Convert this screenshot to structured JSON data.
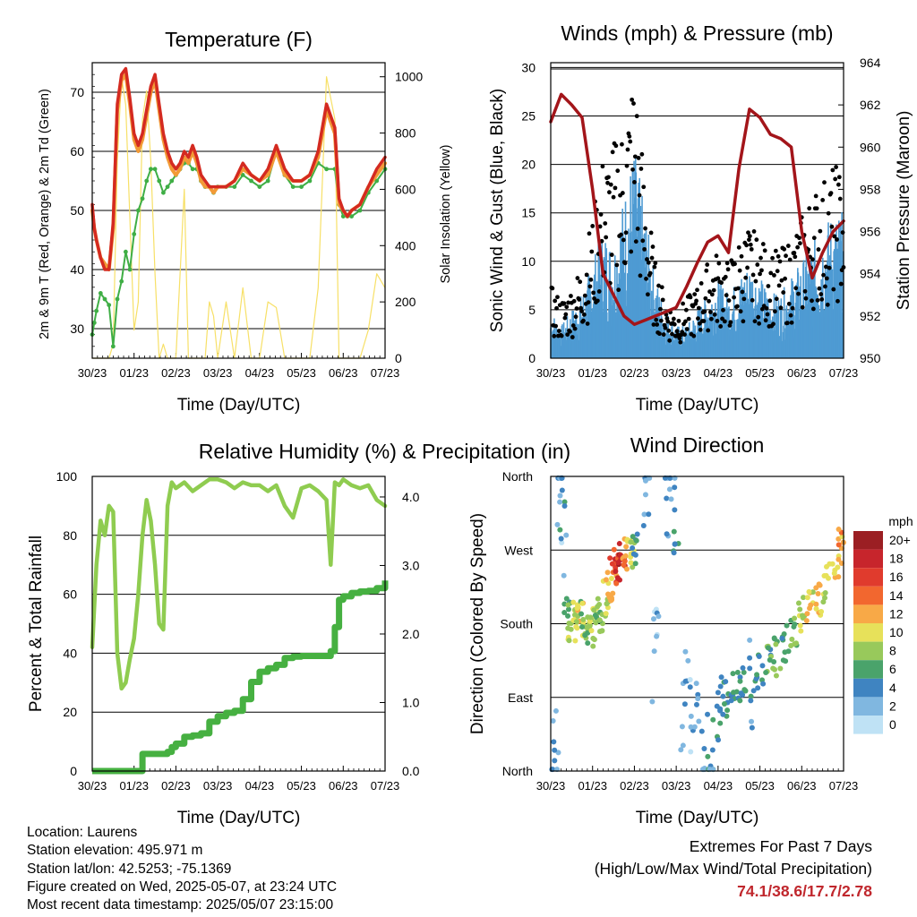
{
  "x_ticks": [
    "30/23",
    "01/23",
    "02/23",
    "03/23",
    "04/23",
    "05/23",
    "06/23",
    "07/23"
  ],
  "footer": {
    "location": "Location: Laurens",
    "elevation": "Station elevation: 495.971 m",
    "latlon": "Station lat/lon: 42.5253; -75.1369",
    "created": "Figure created on Wed, 2025-05-07, at 23:24 UTC",
    "recent": "Most recent data timestamp: 2025/05/07 23:15:00",
    "extremes_title": "Extremes For Past 7 Days",
    "extremes_sub": "(High/Low/Max Wind/Total Precipitation)",
    "extremes_values": "74.1/38.6/17.7/2.78"
  },
  "colors": {
    "temp": "#d42a20",
    "temp9m": "#f29a36",
    "dewpoint": "#3fae45",
    "solar": "#f7e067",
    "wind": "#4e9bd3",
    "gust": "#000000",
    "pressure": "#a3151a",
    "rh": "#8fcc50",
    "rain": "#46b041",
    "extremes": "#c0272d"
  },
  "chart_data": [
    {
      "type": "line",
      "title": "Temperature (F)",
      "xlabel": "Time (Day/UTC)",
      "ylabel": "2m & 9m T (Red, Orange) & 2m Td (Green)",
      "y2label": "Solar Insolation (Yellow)",
      "ylim": [
        25,
        75
      ],
      "y2lim": [
        0,
        1050
      ],
      "yticks": [
        30,
        40,
        50,
        60,
        70
      ],
      "y2ticks": [
        0,
        200,
        400,
        600,
        800,
        1000
      ],
      "x": [
        0,
        0.05,
        0.1,
        0.2,
        0.3,
        0.4,
        0.5,
        0.6,
        0.7,
        0.8,
        0.9,
        1.0,
        1.1,
        1.2,
        1.3,
        1.4,
        1.5,
        1.6,
        1.7,
        1.8,
        1.9,
        2.0,
        2.1,
        2.2,
        2.3,
        2.4,
        2.5,
        2.6,
        2.7,
        2.8,
        2.9,
        3.0,
        3.2,
        3.4,
        3.6,
        3.8,
        4.0,
        4.2,
        4.4,
        4.6,
        4.8,
        5.0,
        5.2,
        5.4,
        5.6,
        5.8,
        5.9,
        6.0,
        6.1,
        6.2,
        6.4,
        6.6,
        6.8,
        7.0
      ],
      "series": [
        {
          "name": "2m T",
          "values": [
            51,
            47,
            45,
            42,
            40,
            40,
            48,
            68,
            73,
            74,
            69,
            63,
            61,
            63,
            67,
            71,
            73,
            68,
            63,
            60,
            58,
            57,
            58,
            60,
            59,
            61,
            59,
            56,
            55,
            54,
            54,
            54,
            54,
            55,
            58,
            56,
            55,
            57,
            61,
            57,
            55,
            55,
            56,
            60,
            68,
            64,
            52,
            50,
            49,
            50,
            51,
            54,
            57,
            59
          ]
        },
        {
          "name": "9m T",
          "values": [
            50,
            47,
            45,
            42,
            41,
            40,
            47,
            67,
            72,
            73,
            68,
            62,
            60,
            62,
            66,
            70,
            72,
            67,
            62,
            59,
            57,
            56,
            57,
            59,
            58,
            60,
            58,
            55,
            54,
            54,
            53,
            54,
            54,
            55,
            57,
            56,
            55,
            56,
            60,
            56,
            55,
            55,
            56,
            59,
            67,
            63,
            51,
            50,
            49,
            50,
            51,
            54,
            56,
            58
          ]
        },
        {
          "name": "2m Td",
          "values": [
            29,
            31,
            33,
            36,
            35,
            34,
            27,
            35,
            38,
            43,
            40,
            46,
            50,
            52,
            55,
            57,
            57,
            55,
            53,
            54,
            55,
            56,
            57,
            58,
            58,
            57,
            57,
            55,
            54,
            54,
            53,
            54,
            54,
            54,
            56,
            55,
            54,
            55,
            60,
            56,
            54,
            54,
            55,
            58,
            57,
            57,
            51,
            49,
            49,
            49,
            50,
            53,
            55,
            57
          ]
        },
        {
          "name": "Solar",
          "values": [
            0,
            0,
            0,
            0,
            0,
            0,
            50,
            700,
            1000,
            900,
            500,
            100,
            200,
            850,
            950,
            700,
            300,
            0,
            50,
            0,
            0,
            0,
            300,
            600,
            0,
            0,
            0,
            0,
            0,
            200,
            150,
            0,
            200,
            0,
            250,
            0,
            0,
            200,
            180,
            0,
            0,
            0,
            0,
            250,
            1000,
            850,
            0,
            0,
            0,
            0,
            0,
            100,
            300,
            250
          ]
        }
      ]
    },
    {
      "type": "line",
      "title": "Winds (mph) & Pressure (mb)",
      "xlabel": "Time (Day/UTC)",
      "ylabel": "Sonic Wind & Gust (Blue, Black)",
      "y2label": "Station Pressure (Maroon)",
      "ylim": [
        0,
        30.5
      ],
      "y2lim": [
        950,
        964
      ],
      "yticks": [
        0,
        5,
        10,
        15,
        20,
        25,
        30
      ],
      "y2ticks": [
        950,
        952,
        954,
        956,
        958,
        960,
        962,
        964
      ],
      "x": [
        0,
        0.25,
        0.5,
        0.75,
        1.0,
        1.25,
        1.5,
        1.75,
        2.0,
        2.25,
        2.5,
        2.75,
        3.0,
        3.25,
        3.5,
        3.75,
        4.0,
        4.25,
        4.5,
        4.75,
        5.0,
        5.25,
        5.5,
        5.75,
        6.0,
        6.25,
        6.5,
        6.75,
        7.0
      ],
      "series": [
        {
          "name": "Sonic Wind",
          "values": [
            3,
            2,
            3,
            4,
            6,
            8,
            7,
            10,
            13,
            9,
            5,
            3,
            2,
            2,
            3,
            4,
            5,
            4,
            5,
            6,
            5,
            4,
            4,
            5,
            6,
            7,
            8,
            9,
            9
          ]
        },
        {
          "name": "Gust",
          "values": [
            6,
            5,
            6,
            8,
            12,
            17,
            18,
            20,
            25,
            15,
            8,
            5,
            4,
            5,
            6,
            8,
            9,
            8,
            10,
            11,
            10,
            9,
            9,
            10,
            12,
            14,
            15,
            16,
            16
          ]
        },
        {
          "name": "Station Pressure",
          "values": [
            961.2,
            962.5,
            962.0,
            961.4,
            958.0,
            954.0,
            953.0,
            952.0,
            951.6,
            951.8,
            952.0,
            952.2,
            952.4,
            953.4,
            954.5,
            955.5,
            955.8,
            955.0,
            959.0,
            961.8,
            961.4,
            960.6,
            960.4,
            960.0,
            956.0,
            953.8,
            955.0,
            956.0,
            956.5
          ]
        }
      ]
    },
    {
      "type": "line",
      "title": "Relative Humidity (%) & Precipitation (in)",
      "xlabel": "Time (Day/UTC)",
      "ylabel": "Percent & Total Rainfall",
      "ylim": [
        0,
        100
      ],
      "y2lim": [
        0.0,
        4.3
      ],
      "yticks": [
        0,
        20,
        40,
        60,
        80,
        100
      ],
      "y2ticks": [
        "0.0",
        "1.0",
        "2.0",
        "3.0",
        "4.0"
      ],
      "x": [
        0,
        0.1,
        0.2,
        0.3,
        0.4,
        0.5,
        0.6,
        0.7,
        0.8,
        0.9,
        1.0,
        1.1,
        1.2,
        1.3,
        1.4,
        1.5,
        1.6,
        1.7,
        1.8,
        1.9,
        2.0,
        2.2,
        2.4,
        2.6,
        2.8,
        3.0,
        3.2,
        3.4,
        3.6,
        3.8,
        4.0,
        4.2,
        4.4,
        4.6,
        4.8,
        5.0,
        5.2,
        5.4,
        5.6,
        5.7,
        5.8,
        5.9,
        6.0,
        6.2,
        6.4,
        6.6,
        6.8,
        7.0
      ],
      "series": [
        {
          "name": "Relative Humidity",
          "values": [
            42,
            70,
            85,
            80,
            90,
            88,
            40,
            28,
            30,
            38,
            45,
            60,
            80,
            92,
            85,
            70,
            50,
            48,
            90,
            98,
            96,
            98,
            95,
            97,
            99,
            99,
            98,
            96,
            98,
            97,
            97,
            95,
            97,
            90,
            86,
            96,
            97,
            95,
            92,
            70,
            98,
            97,
            99,
            97,
            96,
            97,
            92,
            90
          ]
        },
        {
          "name": "Total Rainfall",
          "values": [
            0.0,
            0.0,
            0.0,
            0.0,
            0.0,
            0.0,
            0.0,
            0.0,
            0.0,
            0.0,
            0.0,
            0.0,
            0.25,
            0.25,
            0.25,
            0.25,
            0.25,
            0.25,
            0.28,
            0.35,
            0.4,
            0.5,
            0.52,
            0.55,
            0.72,
            0.8,
            0.85,
            0.88,
            1.05,
            1.3,
            1.45,
            1.5,
            1.55,
            1.65,
            1.67,
            1.68,
            1.68,
            1.68,
            1.68,
            1.75,
            2.1,
            2.5,
            2.55,
            2.6,
            2.62,
            2.63,
            2.67,
            2.78
          ]
        }
      ]
    },
    {
      "type": "scatter",
      "title": "Wind Direction",
      "xlabel": "Time (Day/UTC)",
      "ylabel": "Direction (Colored By Speed)",
      "yticks": [
        "North",
        "East",
        "South",
        "West",
        "North"
      ],
      "ylim_degrees": [
        0,
        360
      ],
      "colorbar": {
        "label": "mph",
        "ticks": [
          "20+",
          "18",
          "16",
          "14",
          "12",
          "10",
          "8",
          "6",
          "4",
          "2",
          "0"
        ],
        "colors": [
          "#9b1f23",
          "#c7252c",
          "#e03b2d",
          "#f2672f",
          "#f8a947",
          "#e7e15a",
          "#98c95b",
          "#4aa36b",
          "#3f84c1",
          "#80b7e0",
          "#bfe2f5"
        ]
      },
      "x": [
        0.1,
        0.2,
        0.3,
        0.4,
        0.5,
        0.6,
        0.7,
        0.8,
        0.9,
        1.0,
        1.1,
        1.2,
        1.3,
        1.4,
        1.5,
        1.6,
        1.7,
        1.8,
        1.9,
        2.0,
        2.3,
        2.5,
        2.8,
        3.0,
        3.2,
        3.4,
        3.6,
        3.8,
        4.0,
        4.2,
        4.4,
        4.6,
        4.8,
        5.0,
        5.2,
        5.4,
        5.6,
        5.8,
        6.0,
        6.2,
        6.4,
        6.6,
        6.8,
        6.95
      ],
      "direction": [
        20,
        340,
        300,
        200,
        180,
        190,
        195,
        185,
        180,
        175,
        185,
        195,
        210,
        230,
        240,
        250,
        255,
        260,
        265,
        270,
        340,
        150,
        350,
        330,
        80,
        60,
        40,
        30,
        70,
        90,
        100,
        110,
        100,
        120,
        130,
        140,
        155,
        165,
        190,
        200,
        210,
        230,
        260,
        275
      ],
      "speed": [
        3,
        2,
        4,
        6,
        8,
        9,
        10,
        8,
        7,
        9,
        8,
        7,
        9,
        11,
        14,
        16,
        18,
        13,
        9,
        6,
        3,
        2,
        3,
        4,
        3,
        2,
        3,
        4,
        4,
        5,
        5,
        5,
        4,
        5,
        6,
        7,
        6,
        7,
        9,
        10,
        11,
        10,
        11,
        12
      ]
    }
  ]
}
